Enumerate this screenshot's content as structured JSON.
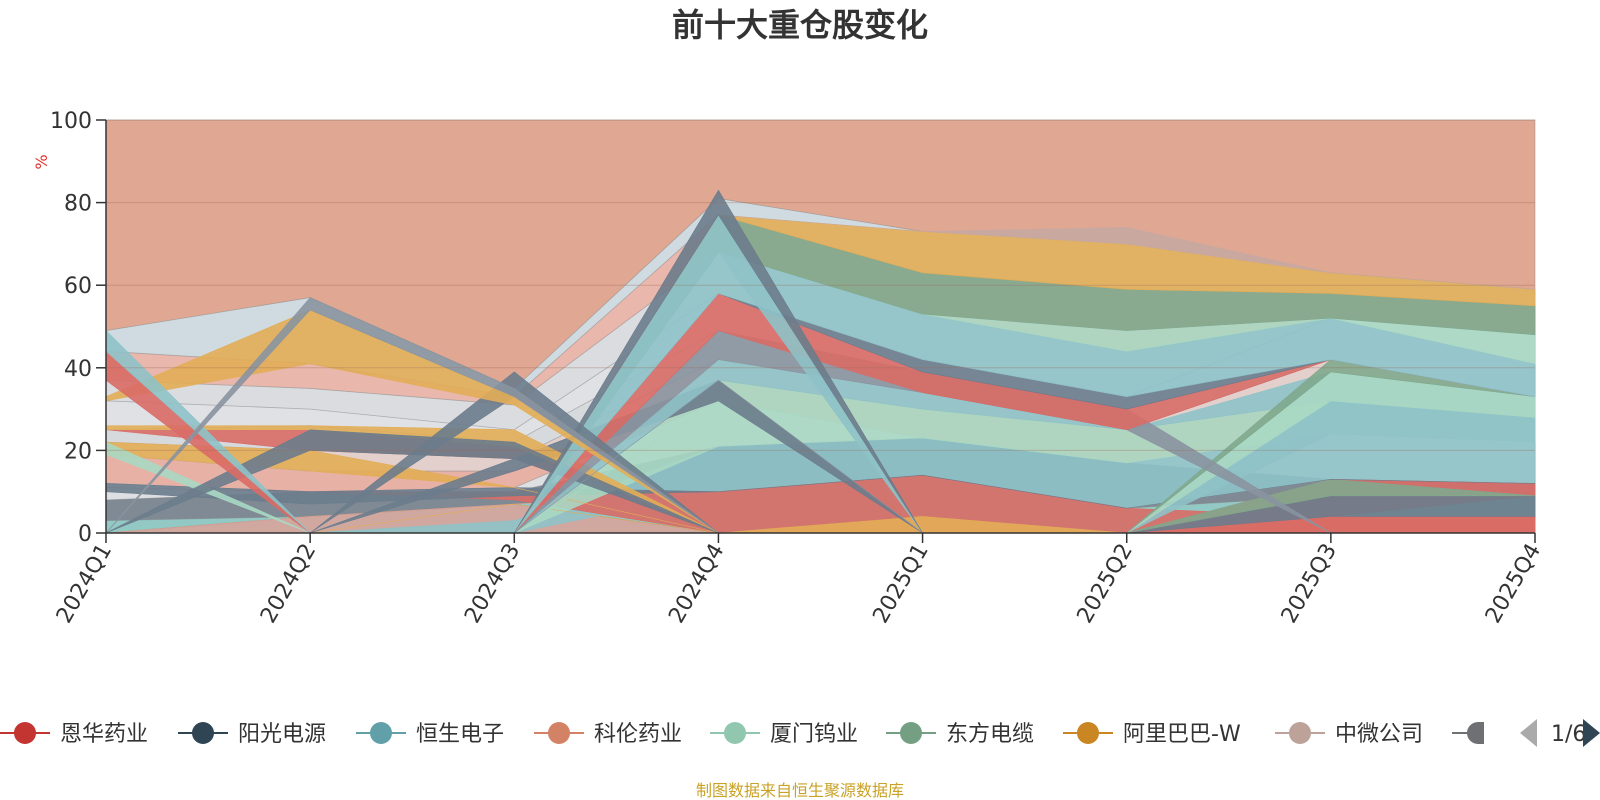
{
  "chart_data": {
    "type": "area",
    "title": "前十大重仓股变化",
    "ylabel": "%",
    "ylim": [
      0,
      100
    ],
    "yticks": [
      "0",
      "20",
      "40",
      "60",
      "80",
      "100"
    ],
    "categories": [
      "2024Q1",
      "2024Q2",
      "2024Q3",
      "2024Q4",
      "2025Q1",
      "2025Q2",
      "2025Q3",
      "2025Q4"
    ],
    "bands": [
      {
        "name": "b0",
        "color": "#d1a8a0",
        "values": [
          0,
          4,
          7,
          0,
          4,
          0,
          4,
          4
        ]
      },
      {
        "name": "b1",
        "color": "#93c9c4",
        "values": [
          3,
          4,
          7,
          10,
          14,
          6,
          9,
          9
        ]
      },
      {
        "name": "b2",
        "color": "#7f8a95",
        "values": [
          8,
          10,
          10,
          21,
          23,
          17,
          13,
          12
        ]
      },
      {
        "name": "b3",
        "color": "#dddfe2",
        "values": [
          12,
          10,
          11,
          32,
          23,
          17,
          24,
          22
        ]
      },
      {
        "name": "b4",
        "color": "#e7b1a6",
        "values": [
          19,
          15,
          15,
          37,
          30,
          25,
          32,
          28
        ]
      },
      {
        "name": "b5",
        "color": "#e3d0cc",
        "values": [
          22,
          20,
          18,
          42,
          34,
          25,
          42,
          33
        ]
      },
      {
        "name": "b6",
        "color": "#d7dadd",
        "values": [
          25,
          26,
          22,
          49,
          39,
          30,
          42,
          33
        ]
      },
      {
        "name": "b7",
        "color": "#dfe1e4",
        "values": [
          32,
          30,
          25,
          58,
          42,
          33,
          52,
          41
        ]
      },
      {
        "name": "b8",
        "color": "#dadcdf",
        "values": [
          37,
          35,
          31,
          68,
          53,
          44,
          52,
          48
        ]
      },
      {
        "name": "b9",
        "color": "#e9b7ab",
        "values": [
          44,
          41,
          33,
          77,
          63,
          59,
          58,
          55
        ]
      },
      {
        "name": "b10",
        "color": "#cfdbe0",
        "values": [
          49,
          57,
          35,
          81,
          73,
          70,
          63,
          59
        ]
      },
      {
        "name": "b11",
        "color": "#e0a792",
        "values": [
          100,
          100,
          100,
          100,
          100,
          100,
          100,
          100
        ]
      }
    ],
    "lanes": [
      {
        "color": "#e3a08b",
        "lo": [
          0,
          4,
          7,
          10,
          14,
          6,
          13,
          12
        ],
        "hi": [
          0,
          4,
          7,
          10,
          14,
          6,
          13,
          12
        ]
      },
      {
        "color": "#8ec2c8",
        "lo": [
          0,
          0,
          0,
          10,
          14,
          6,
          13,
          12
        ],
        "hi": [
          0,
          0,
          3,
          21,
          23,
          17,
          24,
          22
        ]
      },
      {
        "color": "#d96b66",
        "lo": [
          11,
          10,
          8,
          0,
          0,
          0,
          0,
          0
        ],
        "hi": [
          11,
          10,
          10,
          10,
          14,
          6,
          4,
          4
        ]
      },
      {
        "color": "#d96b66",
        "lo": [
          25,
          20,
          18,
          0,
          0,
          0,
          0,
          0
        ],
        "hi": [
          25,
          25,
          21,
          0,
          0,
          0,
          4,
          4
        ]
      },
      {
        "color": "#d96b66",
        "lo": [
          0,
          0,
          0,
          0,
          0,
          0,
          4,
          9
        ],
        "hi": [
          0,
          0,
          0,
          0,
          0,
          0,
          13,
          12
        ]
      },
      {
        "color": "#6b7c8c",
        "lo": [
          0,
          0,
          0,
          0,
          0,
          0,
          4,
          4
        ],
        "hi": [
          0,
          0,
          0,
          0,
          0,
          0,
          9,
          9
        ]
      },
      {
        "color": "#7fa88d",
        "lo": [
          0,
          0,
          0,
          0,
          0,
          0,
          9,
          9
        ],
        "hi": [
          0,
          0,
          0,
          0,
          0,
          0,
          13,
          9
        ]
      },
      {
        "color": "#6b7c8c",
        "lo": [
          10,
          7,
          9,
          10,
          14,
          6,
          13,
          12
        ],
        "hi": [
          12,
          10,
          11,
          10,
          14,
          6,
          13,
          12
        ]
      },
      {
        "color": "#a9d8c3",
        "lo": [
          0,
          0,
          0,
          21,
          23,
          17,
          24,
          22
        ],
        "hi": [
          0,
          0,
          0,
          32,
          23,
          17,
          24,
          22
        ]
      },
      {
        "color": "#e2ad57",
        "lo": [
          0,
          0,
          7,
          0,
          0,
          0,
          0,
          0
        ],
        "hi": [
          0,
          0,
          7,
          0,
          4,
          0,
          0,
          0
        ]
      },
      {
        "color": "#e2ad57",
        "lo": [
          19,
          15,
          11,
          0,
          0,
          0,
          0,
          0
        ],
        "hi": [
          22,
          20,
          11,
          0,
          0,
          0,
          0,
          0
        ]
      },
      {
        "color": "#a9d8c3",
        "lo": [
          19,
          0,
          0,
          0,
          0,
          0,
          0,
          0
        ],
        "hi": [
          22,
          0,
          0,
          0,
          0,
          0,
          0,
          0
        ]
      },
      {
        "color": "#a9d8c3",
        "lo": [
          0,
          0,
          0,
          32,
          23,
          17,
          24,
          22
        ],
        "hi": [
          0,
          0,
          0,
          37,
          30,
          25,
          32,
          28
        ]
      },
      {
        "color": "#8ec2c8",
        "lo": [
          0,
          0,
          0,
          0,
          0,
          0,
          24,
          22
        ],
        "hi": [
          0,
          0,
          0,
          0,
          0,
          0,
          32,
          28
        ]
      },
      {
        "color": "#6b7c8c",
        "lo": [
          0,
          0,
          15,
          32,
          0,
          0,
          0,
          0
        ],
        "hi": [
          0,
          0,
          18,
          37,
          0,
          0,
          0,
          0
        ]
      },
      {
        "color": "#8ec2c8",
        "lo": [
          0,
          0,
          0,
          37,
          30,
          25,
          32,
          28
        ],
        "hi": [
          0,
          0,
          0,
          42,
          34,
          25,
          39,
          33
        ]
      },
      {
        "color": "#a9d8c3",
        "lo": [
          0,
          0,
          0,
          0,
          0,
          0,
          32,
          28
        ],
        "hi": [
          0,
          0,
          0,
          0,
          0,
          0,
          39,
          33
        ]
      },
      {
        "color": "#7fa88d",
        "lo": [
          0,
          0,
          0,
          0,
          0,
          0,
          39,
          33
        ],
        "hi": [
          0,
          0,
          0,
          0,
          0,
          0,
          42,
          33
        ]
      },
      {
        "color": "#e2ad57",
        "lo": [
          25,
          25,
          21,
          0,
          0,
          0,
          0,
          0
        ],
        "hi": [
          26,
          26,
          25,
          0,
          0,
          0,
          0,
          0
        ]
      },
      {
        "color": "#6b7c8c",
        "lo": [
          0,
          20,
          18,
          0,
          0,
          0,
          0,
          0
        ],
        "hi": [
          0,
          25,
          22,
          0,
          0,
          0,
          0,
          0
        ]
      },
      {
        "color": "#8a94a0",
        "lo": [
          0,
          0,
          0,
          42,
          34,
          25,
          0,
          0
        ],
        "hi": [
          0,
          0,
          0,
          49,
          39,
          30,
          0,
          0
        ]
      },
      {
        "color": "#d96b66",
        "lo": [
          0,
          0,
          0,
          49,
          34,
          25,
          42,
          33
        ],
        "hi": [
          0,
          0,
          0,
          58,
          39,
          30,
          42,
          33
        ]
      },
      {
        "color": "#6b7c8c",
        "lo": [
          0,
          0,
          0,
          58,
          39,
          30,
          42,
          33
        ],
        "hi": [
          0,
          0,
          0,
          58,
          42,
          33,
          42,
          33
        ]
      },
      {
        "color": "#8ec2c8",
        "lo": [
          0,
          0,
          0,
          58,
          42,
          33,
          42,
          33
        ],
        "hi": [
          0,
          0,
          0,
          68,
          53,
          44,
          52,
          41
        ]
      },
      {
        "color": "#a9d8c3",
        "lo": [
          0,
          0,
          0,
          68,
          53,
          44,
          52,
          41
        ],
        "hi": [
          0,
          0,
          0,
          68,
          53,
          49,
          52,
          48
        ]
      },
      {
        "color": "#7fa88d",
        "lo": [
          0,
          0,
          0,
          68,
          53,
          49,
          52,
          48
        ],
        "hi": [
          0,
          0,
          0,
          77,
          63,
          59,
          58,
          55
        ]
      },
      {
        "color": "#8ec2c8",
        "lo": [
          0,
          0,
          0,
          68,
          0,
          0,
          0,
          0
        ],
        "hi": [
          0,
          0,
          0,
          77,
          0,
          0,
          0,
          0
        ]
      },
      {
        "color": "#e2ad57",
        "lo": [
          0,
          0,
          0,
          77,
          63,
          59,
          58,
          55
        ],
        "hi": [
          0,
          0,
          0,
          77,
          73,
          70,
          63,
          59
        ]
      },
      {
        "color": "#c6a9a2",
        "lo": [
          0,
          0,
          0,
          77,
          73,
          70,
          63,
          59
        ],
        "hi": [
          0,
          0,
          0,
          77,
          73,
          74,
          63,
          59
        ]
      },
      {
        "color": "#6b7c8c",
        "lo": [
          0,
          0,
          0,
          77,
          0,
          0,
          0,
          0
        ],
        "hi": [
          0,
          0,
          0,
          83,
          0,
          0,
          0,
          0
        ]
      },
      {
        "color": "#6b7c8c",
        "lo": [
          0,
          0,
          33,
          0,
          0,
          0,
          0,
          0
        ],
        "hi": [
          0,
          0,
          39,
          0,
          0,
          0,
          0,
          0
        ]
      },
      {
        "color": "#e2ad57",
        "lo": [
          32,
          41,
          31,
          0,
          0,
          0,
          0,
          0
        ],
        "hi": [
          33,
          54,
          33,
          0,
          0,
          0,
          0,
          0
        ]
      },
      {
        "color": "#d96b66",
        "lo": [
          37,
          0,
          0,
          0,
          0,
          0,
          0,
          0
        ],
        "hi": [
          44,
          0,
          0,
          0,
          0,
          0,
          0,
          0
        ]
      },
      {
        "color": "#8ec2c8",
        "lo": [
          44,
          0,
          0,
          0,
          0,
          0,
          0,
          0
        ],
        "hi": [
          49,
          0,
          0,
          0,
          0,
          0,
          0,
          0
        ]
      },
      {
        "color": "#8a94a0",
        "lo": [
          0,
          54,
          33,
          0,
          0,
          0,
          0,
          0
        ],
        "hi": [
          0,
          57,
          35,
          0,
          0,
          0,
          0,
          0
        ]
      },
      {
        "color": "#8a94a0",
        "lo": [
          0,
          0,
          0,
          37,
          0,
          0,
          0,
          0
        ],
        "hi": [
          0,
          0,
          0,
          37,
          0,
          0,
          0,
          0
        ]
      }
    ],
    "legend": [
      {
        "label": "恩华药业",
        "color": "#c23531"
      },
      {
        "label": "阳光电源",
        "color": "#2f4554"
      },
      {
        "label": "恒生电子",
        "color": "#61a0a8"
      },
      {
        "label": "科伦药业",
        "color": "#d48265"
      },
      {
        "label": "厦门钨业",
        "color": "#91c7ae"
      },
      {
        "label": "东方电缆",
        "color": "#749f83"
      },
      {
        "label": "阿里巴巴-W",
        "color": "#ca8622"
      },
      {
        "label": "中微公司",
        "color": "#bda29a"
      },
      {
        "label": "",
        "color": "#6e7074"
      }
    ],
    "legend_page": "1/6",
    "source": "制图数据来自恒生聚源数据库"
  }
}
